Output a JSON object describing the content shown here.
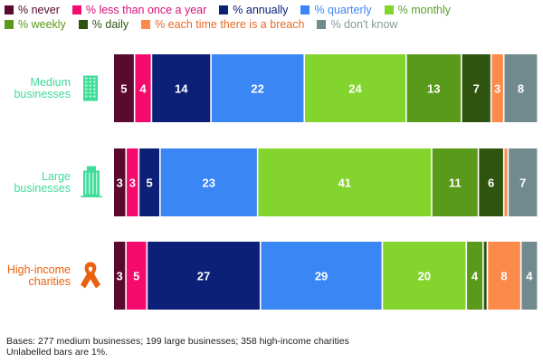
{
  "chart_data": {
    "type": "bar",
    "orientation": "horizontal-stacked",
    "title": "",
    "xlabel": "",
    "ylabel": "",
    "xlim": [
      0,
      100
    ],
    "grid": false,
    "legend_position": "top",
    "categories": [
      "Medium businesses",
      "Large businesses",
      "High-income charities"
    ],
    "category_colors": [
      "#3edc99",
      "#3edc99",
      "#e8620f"
    ],
    "category_icons": [
      "office-building-icon",
      "tall-building-icon",
      "awareness-ribbon-icon"
    ],
    "series": [
      {
        "name": "% never",
        "color": "#5a0a2e",
        "label_color": "#5a0a2e",
        "values": [
          5,
          3,
          3
        ],
        "labels": [
          "5",
          "3",
          "3"
        ]
      },
      {
        "name": "% less than once a year",
        "color": "#f50a6e",
        "label_color": "#d8107a",
        "values": [
          4,
          3,
          5
        ],
        "labels": [
          "4",
          "3",
          "5"
        ]
      },
      {
        "name": "% annually",
        "color": "#0c2078",
        "label_color": "#0c2078",
        "values": [
          14,
          5,
          27
        ],
        "labels": [
          "14",
          "5",
          "27"
        ]
      },
      {
        "name": "% quarterly",
        "color": "#3a86f5",
        "label_color": "#3a86f5",
        "values": [
          22,
          23,
          29
        ],
        "labels": [
          "22",
          "23",
          "29"
        ]
      },
      {
        "name": "% monthly",
        "color": "#84d42e",
        "label_color": "#5aa02a",
        "values": [
          24,
          41,
          20
        ],
        "labels": [
          "24",
          "41",
          "20"
        ]
      },
      {
        "name": "% weekly",
        "color": "#5a9a1a",
        "label_color": "#5a9a1a",
        "values": [
          13,
          11,
          4
        ],
        "labels": [
          "13",
          "11",
          "4"
        ]
      },
      {
        "name": "% daily",
        "color": "#2f5410",
        "label_color": "#2f5410",
        "values": [
          7,
          6,
          1
        ],
        "labels": [
          "7",
          "6",
          ""
        ]
      },
      {
        "name": "% each time there is a breach",
        "color": "#fc8a4a",
        "label_color": "#e86a25",
        "values": [
          3,
          1,
          8
        ],
        "labels": [
          "3",
          "",
          "8"
        ]
      },
      {
        "name": "% don't know",
        "color": "#718a8e",
        "label_color": "#8a9a9e",
        "values": [
          8,
          7,
          4
        ],
        "labels": [
          "8",
          "7",
          "4"
        ]
      }
    ]
  },
  "footer": {
    "bases": "Bases: 277 medium businesses; 199 large businesses; 358 high-income charities",
    "note": "Unlabelled bars are 1%."
  }
}
